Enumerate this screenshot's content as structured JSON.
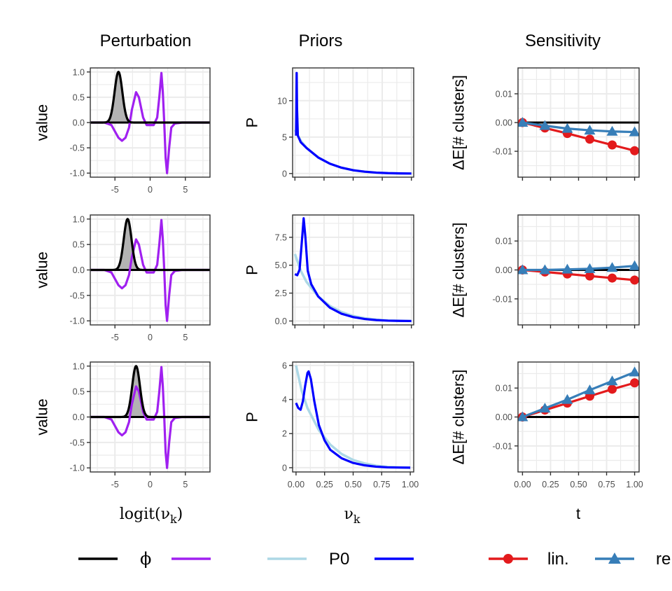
{
  "column_titles": [
    "Perturbation",
    "Priors",
    "Sensitivity"
  ],
  "colors": {
    "phi": "#000000",
    "purple": "#a020f0",
    "p0": "#add8e6",
    "pert_prior": "#0000ff",
    "lin": "#e31a1c",
    "refit": "#377eb8",
    "shade": "#b3b3b3",
    "grid": "#ebebeb"
  },
  "axes": {
    "pert_ylabel": "value",
    "pert_xlabel": "logit(ν",
    "pert_xlabel_sub": "k",
    "pert_xlabel_close": ")",
    "prior_ylabel": "P",
    "prior_xlabel": "ν",
    "prior_xlabel_sub": "k",
    "sens_ylabel": "ΔE[# clusters]",
    "sens_xlabel": "t"
  },
  "legend": {
    "phi": "ϕ",
    "p0": "P0",
    "lin": "lin.",
    "refit": "re"
  },
  "chart_data": [
    {
      "type": "line",
      "panel": "perturbation",
      "row": 1,
      "xlim": [
        -8.5,
        8.5
      ],
      "ylim": [
        -1.08,
        1.08
      ],
      "x_ticks": [
        -5,
        0,
        5
      ],
      "x_tick_labels": [
        "-5",
        "0",
        "5"
      ],
      "y_ticks": [
        -1.0,
        -0.5,
        0.0,
        0.5,
        1.0
      ],
      "y_tick_labels": [
        "-1.0",
        "-0.5",
        "0.0",
        "0.5",
        "1.0"
      ],
      "phi_peak": -4.5,
      "phi_width": 0.55,
      "purple_points": [
        [
          -8.5,
          0
        ],
        [
          -6.5,
          0
        ],
        [
          -5.5,
          -0.05
        ],
        [
          -4.5,
          -0.3
        ],
        [
          -4,
          -0.36
        ],
        [
          -3.5,
          -0.3
        ],
        [
          -3,
          -0.1
        ],
        [
          -2.6,
          0.25
        ],
        [
          -2,
          0.6
        ],
        [
          -1.6,
          0.5
        ],
        [
          -1,
          0.1
        ],
        [
          -0.5,
          -0.05
        ],
        [
          0,
          -0.05
        ],
        [
          0.5,
          -0.05
        ],
        [
          1,
          0.1
        ],
        [
          1.3,
          0.5
        ],
        [
          1.6,
          0.98
        ],
        [
          1.8,
          0.6
        ],
        [
          2,
          0
        ],
        [
          2.2,
          -0.7
        ],
        [
          2.4,
          -1.0
        ],
        [
          2.7,
          -0.5
        ],
        [
          3,
          -0.1
        ],
        [
          3.5,
          -0.02
        ],
        [
          4.5,
          0
        ],
        [
          8.5,
          0
        ]
      ],
      "grid": true
    },
    {
      "type": "line",
      "panel": "perturbation",
      "row": 2,
      "xlim": [
        -8.5,
        8.5
      ],
      "ylim": [
        -1.08,
        1.08
      ],
      "x_ticks": [
        -5,
        0,
        5
      ],
      "x_tick_labels": [
        "-5",
        "0",
        "5"
      ],
      "y_ticks": [
        -1.0,
        -0.5,
        0.0,
        0.5,
        1.0
      ],
      "y_tick_labels": [
        "-1.0",
        "-0.5",
        "0.0",
        "0.5",
        "1.0"
      ],
      "phi_peak": -3.2,
      "phi_width": 0.55,
      "purple_points": [
        [
          -8.5,
          0
        ],
        [
          -6.5,
          0
        ],
        [
          -5.5,
          -0.05
        ],
        [
          -4.5,
          -0.3
        ],
        [
          -4,
          -0.36
        ],
        [
          -3.5,
          -0.3
        ],
        [
          -3,
          -0.1
        ],
        [
          -2.6,
          0.25
        ],
        [
          -2,
          0.6
        ],
        [
          -1.6,
          0.5
        ],
        [
          -1,
          0.1
        ],
        [
          -0.5,
          -0.05
        ],
        [
          0,
          -0.05
        ],
        [
          0.5,
          -0.05
        ],
        [
          1,
          0.1
        ],
        [
          1.3,
          0.5
        ],
        [
          1.6,
          0.98
        ],
        [
          1.8,
          0.6
        ],
        [
          2,
          0
        ],
        [
          2.2,
          -0.7
        ],
        [
          2.4,
          -1.0
        ],
        [
          2.7,
          -0.5
        ],
        [
          3,
          -0.1
        ],
        [
          3.5,
          -0.02
        ],
        [
          4.5,
          0
        ],
        [
          8.5,
          0
        ]
      ],
      "grid": true
    },
    {
      "type": "line",
      "panel": "perturbation",
      "row": 3,
      "xlim": [
        -8.5,
        8.5
      ],
      "ylim": [
        -1.08,
        1.08
      ],
      "x_ticks": [
        -5,
        0,
        5
      ],
      "x_tick_labels": [
        "-5",
        "0",
        "5"
      ],
      "y_ticks": [
        -1.0,
        -0.5,
        0.0,
        0.5,
        1.0
      ],
      "y_tick_labels": [
        "-1.0",
        "-0.5",
        "0.0",
        "0.5",
        "1.0"
      ],
      "phi_peak": -2.0,
      "phi_width": 0.55,
      "purple_points": [
        [
          -8.5,
          0
        ],
        [
          -6.5,
          0
        ],
        [
          -5.5,
          -0.05
        ],
        [
          -4.5,
          -0.3
        ],
        [
          -4,
          -0.36
        ],
        [
          -3.5,
          -0.3
        ],
        [
          -3,
          -0.1
        ],
        [
          -2.6,
          0.25
        ],
        [
          -2,
          0.6
        ],
        [
          -1.6,
          0.5
        ],
        [
          -1,
          0.1
        ],
        [
          -0.5,
          -0.05
        ],
        [
          0,
          -0.05
        ],
        [
          0.5,
          -0.05
        ],
        [
          1,
          0.1
        ],
        [
          1.3,
          0.5
        ],
        [
          1.6,
          0.98
        ],
        [
          1.8,
          0.6
        ],
        [
          2,
          0
        ],
        [
          2.2,
          -0.7
        ],
        [
          2.4,
          -1.0
        ],
        [
          2.7,
          -0.5
        ],
        [
          3,
          -0.1
        ],
        [
          3.5,
          -0.02
        ],
        [
          4.5,
          0
        ],
        [
          8.5,
          0
        ]
      ],
      "grid": true
    },
    {
      "type": "line",
      "panel": "priors",
      "row": 1,
      "xlim": [
        -0.02,
        1.02
      ],
      "ylim": [
        -0.5,
        14.5
      ],
      "x_ticks": [
        0,
        0.25,
        0.5,
        0.75,
        1.0
      ],
      "y_ticks": [
        0,
        5,
        10
      ],
      "y_tick_labels": [
        "0",
        "5",
        "10"
      ],
      "p0_points": [
        [
          0,
          6
        ],
        [
          0.05,
          4.5
        ],
        [
          0.1,
          3.5
        ],
        [
          0.2,
          2.2
        ],
        [
          0.3,
          1.35
        ],
        [
          0.4,
          0.8
        ],
        [
          0.5,
          0.45
        ],
        [
          0.6,
          0.25
        ],
        [
          0.7,
          0.12
        ],
        [
          0.8,
          0.05
        ],
        [
          0.9,
          0.02
        ],
        [
          1,
          0
        ]
      ],
      "perturbed_points": [
        [
          0.01,
          5.2
        ],
        [
          0.012,
          8
        ],
        [
          0.015,
          13.8
        ],
        [
          0.018,
          9
        ],
        [
          0.025,
          5.2
        ],
        [
          0.05,
          4.3
        ],
        [
          0.1,
          3.5
        ],
        [
          0.2,
          2.2
        ],
        [
          0.3,
          1.35
        ],
        [
          0.4,
          0.8
        ],
        [
          0.5,
          0.45
        ],
        [
          0.6,
          0.25
        ],
        [
          0.7,
          0.12
        ],
        [
          0.8,
          0.05
        ],
        [
          0.9,
          0.02
        ],
        [
          1,
          0
        ]
      ],
      "grid": true
    },
    {
      "type": "line",
      "panel": "priors",
      "row": 2,
      "xlim": [
        -0.02,
        1.02
      ],
      "ylim": [
        -0.35,
        9.5
      ],
      "x_ticks": [
        0,
        0.25,
        0.5,
        0.75,
        1.0
      ],
      "y_ticks": [
        0,
        2.5,
        5.0,
        7.5
      ],
      "y_tick_labels": [
        "0.0",
        "2.5",
        "5.0",
        "7.5"
      ],
      "p0_points": [
        [
          0,
          6
        ],
        [
          0.05,
          4.5
        ],
        [
          0.1,
          3.5
        ],
        [
          0.2,
          2.2
        ],
        [
          0.3,
          1.35
        ],
        [
          0.4,
          0.8
        ],
        [
          0.5,
          0.45
        ],
        [
          0.6,
          0.25
        ],
        [
          0.7,
          0.12
        ],
        [
          0.8,
          0.05
        ],
        [
          0.9,
          0.02
        ],
        [
          1,
          0
        ]
      ],
      "perturbed_points": [
        [
          0.0,
          4.2
        ],
        [
          0.02,
          4.1
        ],
        [
          0.04,
          4.6
        ],
        [
          0.06,
          7.2
        ],
        [
          0.075,
          9.2
        ],
        [
          0.09,
          7.5
        ],
        [
          0.11,
          4.5
        ],
        [
          0.14,
          3.3
        ],
        [
          0.2,
          2.2
        ],
        [
          0.3,
          1.2
        ],
        [
          0.4,
          0.65
        ],
        [
          0.5,
          0.35
        ],
        [
          0.6,
          0.18
        ],
        [
          0.7,
          0.08
        ],
        [
          0.8,
          0.03
        ],
        [
          0.9,
          0.01
        ],
        [
          1,
          0
        ]
      ],
      "grid": true
    },
    {
      "type": "line",
      "panel": "priors",
      "row": 3,
      "xlim": [
        -0.03,
        1.03
      ],
      "ylim": [
        -0.25,
        6.2
      ],
      "x_ticks": [
        0,
        0.25,
        0.5,
        0.75,
        1.0
      ],
      "x_tick_labels": [
        "0.00",
        "0.25",
        "0.50",
        "0.75",
        "1.00"
      ],
      "y_ticks": [
        0,
        2,
        4,
        6
      ],
      "y_tick_labels": [
        "0",
        "2",
        "4",
        "6"
      ],
      "p0_points": [
        [
          0,
          6
        ],
        [
          0.05,
          4.5
        ],
        [
          0.1,
          3.5
        ],
        [
          0.2,
          2.2
        ],
        [
          0.3,
          1.35
        ],
        [
          0.4,
          0.8
        ],
        [
          0.5,
          0.45
        ],
        [
          0.6,
          0.25
        ],
        [
          0.7,
          0.12
        ],
        [
          0.8,
          0.05
        ],
        [
          0.9,
          0.02
        ],
        [
          1,
          0
        ]
      ],
      "perturbed_points": [
        [
          0.0,
          3.8
        ],
        [
          0.02,
          3.5
        ],
        [
          0.04,
          3.4
        ],
        [
          0.06,
          3.9
        ],
        [
          0.08,
          4.8
        ],
        [
          0.1,
          5.55
        ],
        [
          0.11,
          5.65
        ],
        [
          0.13,
          5.2
        ],
        [
          0.16,
          3.9
        ],
        [
          0.2,
          2.5
        ],
        [
          0.25,
          1.6
        ],
        [
          0.3,
          1.05
        ],
        [
          0.4,
          0.55
        ],
        [
          0.5,
          0.28
        ],
        [
          0.6,
          0.14
        ],
        [
          0.7,
          0.06
        ],
        [
          0.8,
          0.02
        ],
        [
          0.9,
          0.01
        ],
        [
          1,
          0
        ]
      ],
      "grid": true
    },
    {
      "type": "line",
      "panel": "sensitivity",
      "row": 1,
      "xlim": [
        -0.04,
        1.04
      ],
      "ylim": [
        -0.019,
        0.019
      ],
      "x_ticks": [
        0,
        0.25,
        0.5,
        0.75,
        1.0
      ],
      "y_ticks": [
        -0.01,
        0.0,
        0.01
      ],
      "y_tick_labels": [
        "-0.01",
        "0.00",
        "0.01"
      ],
      "t": [
        0,
        0.2,
        0.4,
        0.6,
        0.8,
        1.0
      ],
      "series": [
        {
          "name": "lin.",
          "values": [
            0.0,
            -0.0019,
            -0.0038,
            -0.0058,
            -0.0078,
            -0.0098
          ]
        },
        {
          "name": "re",
          "values": [
            0.0,
            -0.0011,
            -0.0021,
            -0.0027,
            -0.0031,
            -0.0033
          ]
        }
      ],
      "grid": true
    },
    {
      "type": "line",
      "panel": "sensitivity",
      "row": 2,
      "xlim": [
        -0.04,
        1.04
      ],
      "ylim": [
        -0.019,
        0.019
      ],
      "x_ticks": [
        0,
        0.25,
        0.5,
        0.75,
        1.0
      ],
      "y_ticks": [
        -0.01,
        0.0,
        0.01
      ],
      "y_tick_labels": [
        "-0.01",
        "0.00",
        "0.01"
      ],
      "t": [
        0,
        0.2,
        0.4,
        0.6,
        0.8,
        1.0
      ],
      "series": [
        {
          "name": "lin.",
          "values": [
            0.0,
            -0.0007,
            -0.0014,
            -0.0021,
            -0.0028,
            -0.0035
          ]
        },
        {
          "name": "re",
          "values": [
            0.0,
            0.0,
            0.0002,
            0.0004,
            0.0008,
            0.0014
          ]
        }
      ],
      "grid": true
    },
    {
      "type": "line",
      "panel": "sensitivity",
      "row": 3,
      "xlim": [
        -0.04,
        1.04
      ],
      "ylim": [
        -0.019,
        0.019
      ],
      "x_ticks": [
        0,
        0.25,
        0.5,
        0.75,
        1.0
      ],
      "x_tick_labels": [
        "0.00",
        "0.25",
        "0.50",
        "0.75",
        "1.00"
      ],
      "y_ticks": [
        -0.01,
        0.0,
        0.01
      ],
      "y_tick_labels": [
        "-0.01",
        "0.00",
        "0.01"
      ],
      "t": [
        0,
        0.2,
        0.4,
        0.6,
        0.8,
        1.0
      ],
      "series": [
        {
          "name": "lin.",
          "values": [
            0.0,
            0.0024,
            0.0048,
            0.0072,
            0.0096,
            0.0118
          ]
        },
        {
          "name": "re",
          "values": [
            0.0,
            0.003,
            0.006,
            0.0093,
            0.0124,
            0.0155
          ]
        }
      ],
      "grid": true
    }
  ]
}
